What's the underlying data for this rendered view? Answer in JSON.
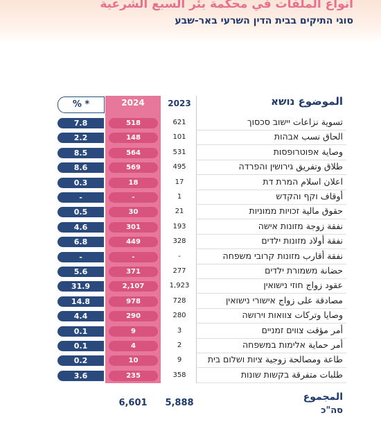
{
  "header": {
    "title": "انواع الملفات في محكمة بئر السبع الشرعية",
    "subtitle": "סוגי התיקים בבית הדין השרעי באר-שבע"
  },
  "table": {
    "columns": {
      "subject": "الموضوع נושא",
      "y2023": "2023",
      "y2024": "2024",
      "pct": "% *"
    },
    "rows": [
      {
        "subject": "تسوية نزاعات יישוב סכסוך",
        "y2023": "621",
        "y2024": "518",
        "pct": "7.8"
      },
      {
        "subject": "الحاق نسب אבהות",
        "y2023": "101",
        "y2024": "148",
        "pct": "2.2"
      },
      {
        "subject": "وصاية אפוטרופסות",
        "y2023": "531",
        "y2024": "564",
        "pct": "8.5"
      },
      {
        "subject": "طلاق وتفريق גירושין והפרדה",
        "y2023": "495",
        "y2024": "569",
        "pct": "8.6"
      },
      {
        "subject": "اعلان اسلام המרת דת",
        "y2023": "17",
        "y2024": "18",
        "pct": "0.3"
      },
      {
        "subject": "أوقاف וקף והקדש",
        "y2023": "1",
        "y2024": "-",
        "pct": "-"
      },
      {
        "subject": "حقوق مالية זכויות ממוניות",
        "y2023": "21",
        "y2024": "30",
        "pct": "0.5"
      },
      {
        "subject": "نفقة زوجة מזונות אישה",
        "y2023": "193",
        "y2024": "301",
        "pct": "4.6"
      },
      {
        "subject": "نفقة أولاد מזונות ילדים",
        "y2023": "328",
        "y2024": "449",
        "pct": "6.8"
      },
      {
        "subject": "نفقة أقارب מזונות קרובי משפחה",
        "y2023": "-",
        "y2024": "-",
        "pct": "-"
      },
      {
        "subject": "حضانة משמורת ילדים",
        "y2023": "277",
        "y2024": "371",
        "pct": "5.6"
      },
      {
        "subject": "عقود زواج חוזי נישואין",
        "y2023": "1,923",
        "y2024": "2,107",
        "pct": "31.9"
      },
      {
        "subject": "مصادقة على زواج אישורי נישואין",
        "y2023": "728",
        "y2024": "978",
        "pct": "14.8"
      },
      {
        "subject": "وصايا وتركات צוואות וירושה",
        "y2023": "280",
        "y2024": "290",
        "pct": "4.4"
      },
      {
        "subject": "أمر مؤقت צווים זמניים",
        "y2023": "3",
        "y2024": "9",
        "pct": "0.1"
      },
      {
        "subject": "أمر حماية אלימות במשפחה",
        "y2023": "2",
        "y2024": "4",
        "pct": "0.1"
      },
      {
        "subject": "طاعة ومصالحة زوجية ציות ושלום בית",
        "y2023": "9",
        "y2024": "10",
        "pct": "0.2"
      },
      {
        "subject": "طلبات متفرقة בקשות שונות",
        "y2023": "358",
        "y2024": "235",
        "pct": "3.6"
      }
    ],
    "total": {
      "label_ar": "المجموع",
      "label_he": "סה\"כ",
      "y2023": "5,888",
      "y2024": "6,601"
    }
  }
}
